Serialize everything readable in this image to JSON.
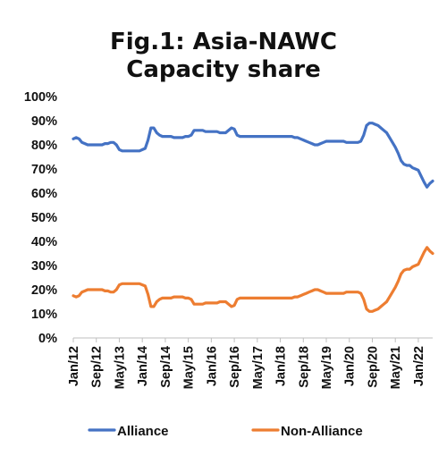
{
  "chart_data": {
    "type": "line",
    "title": "Fig.1: Asia-NAWC",
    "subtitle": "Capacity share",
    "xlabel": "",
    "ylabel": "",
    "x_tick_labels": [
      "Jan/12",
      "Sep/12",
      "May/13",
      "Jan/14",
      "Sep/14",
      "May/15",
      "Jan/16",
      "Sep/16",
      "May/17",
      "Jan/18",
      "Sep/18",
      "May/19",
      "Jan/20",
      "Sep/20",
      "May/21",
      "Jan/22"
    ],
    "y_tick_labels": [
      "0%",
      "10%",
      "20%",
      "30%",
      "40%",
      "50%",
      "60%",
      "70%",
      "80%",
      "90%",
      "100%"
    ],
    "ylim": [
      0,
      100
    ],
    "grid": false,
    "legend_position": "bottom",
    "colors": {
      "Alliance": "#4472C4",
      "Non-Alliance": "#ED7D31"
    },
    "series": [
      {
        "name": "Alliance",
        "color": "#4472C4",
        "points": [
          [
            "Jan/12",
            82.5
          ],
          [
            "Feb/12",
            83.0
          ],
          [
            "Mar/12",
            82.5
          ],
          [
            "Apr/12",
            81.0
          ],
          [
            "May/12",
            80.5
          ],
          [
            "Jun/12",
            80.0
          ],
          [
            "Jul/12",
            80.0
          ],
          [
            "Aug/12",
            80.0
          ],
          [
            "Sep/12",
            80.0
          ],
          [
            "Oct/12",
            80.0
          ],
          [
            "Nov/12",
            80.0
          ],
          [
            "Dec/12",
            80.5
          ],
          [
            "Jan/13",
            80.5
          ],
          [
            "Feb/13",
            81.0
          ],
          [
            "Mar/13",
            81.0
          ],
          [
            "Apr/13",
            80.0
          ],
          [
            "May/13",
            78.0
          ],
          [
            "Jun/13",
            77.5
          ],
          [
            "Jul/13",
            77.5
          ],
          [
            "Aug/13",
            77.5
          ],
          [
            "Sep/13",
            77.5
          ],
          [
            "Oct/13",
            77.5
          ],
          [
            "Nov/13",
            77.5
          ],
          [
            "Dec/13",
            77.5
          ],
          [
            "Jan/14",
            78.0
          ],
          [
            "Feb/14",
            78.5
          ],
          [
            "Mar/14",
            82.0
          ],
          [
            "Apr/14",
            87.0
          ],
          [
            "May/14",
            87.0
          ],
          [
            "Jun/14",
            85.0
          ],
          [
            "Jul/14",
            84.0
          ],
          [
            "Aug/14",
            83.5
          ],
          [
            "Sep/14",
            83.5
          ],
          [
            "Oct/14",
            83.5
          ],
          [
            "Nov/14",
            83.5
          ],
          [
            "Dec/14",
            83.0
          ],
          [
            "Jan/15",
            83.0
          ],
          [
            "Feb/15",
            83.0
          ],
          [
            "Mar/15",
            83.0
          ],
          [
            "Apr/15",
            83.5
          ],
          [
            "May/15",
            83.5
          ],
          [
            "Jun/15",
            84.0
          ],
          [
            "Jul/15",
            86.0
          ],
          [
            "Aug/15",
            86.0
          ],
          [
            "Sep/15",
            86.0
          ],
          [
            "Oct/15",
            86.0
          ],
          [
            "Nov/15",
            85.5
          ],
          [
            "Dec/15",
            85.5
          ],
          [
            "Jan/16",
            85.5
          ],
          [
            "Feb/16",
            85.5
          ],
          [
            "Mar/16",
            85.5
          ],
          [
            "Apr/16",
            85.0
          ],
          [
            "May/16",
            85.0
          ],
          [
            "Jun/16",
            85.0
          ],
          [
            "Jul/16",
            86.0
          ],
          [
            "Aug/16",
            87.0
          ],
          [
            "Sep/16",
            86.5
          ],
          [
            "Oct/16",
            84.0
          ],
          [
            "Nov/16",
            83.5
          ],
          [
            "Dec/16",
            83.5
          ],
          [
            "Jan/17",
            83.5
          ],
          [
            "Feb/17",
            83.5
          ],
          [
            "Mar/17",
            83.5
          ],
          [
            "Apr/17",
            83.5
          ],
          [
            "May/17",
            83.5
          ],
          [
            "Jun/17",
            83.5
          ],
          [
            "Jul/17",
            83.5
          ],
          [
            "Aug/17",
            83.5
          ],
          [
            "Sep/17",
            83.5
          ],
          [
            "Oct/17",
            83.5
          ],
          [
            "Nov/17",
            83.5
          ],
          [
            "Dec/17",
            83.5
          ],
          [
            "Jan/18",
            83.5
          ],
          [
            "Feb/18",
            83.5
          ],
          [
            "Mar/18",
            83.5
          ],
          [
            "Apr/18",
            83.5
          ],
          [
            "May/18",
            83.5
          ],
          [
            "Jun/18",
            83.0
          ],
          [
            "Jul/18",
            83.0
          ],
          [
            "Aug/18",
            82.5
          ],
          [
            "Sep/18",
            82.0
          ],
          [
            "Oct/18",
            81.5
          ],
          [
            "Nov/18",
            81.0
          ],
          [
            "Dec/18",
            80.5
          ],
          [
            "Jan/19",
            80.0
          ],
          [
            "Feb/19",
            80.0
          ],
          [
            "Mar/19",
            80.5
          ],
          [
            "Apr/19",
            81.0
          ],
          [
            "May/19",
            81.5
          ],
          [
            "Jun/19",
            81.5
          ],
          [
            "Jul/19",
            81.5
          ],
          [
            "Aug/19",
            81.5
          ],
          [
            "Sep/19",
            81.5
          ],
          [
            "Oct/19",
            81.5
          ],
          [
            "Nov/19",
            81.5
          ],
          [
            "Dec/19",
            81.0
          ],
          [
            "Jan/20",
            81.0
          ],
          [
            "Feb/20",
            81.0
          ],
          [
            "Mar/20",
            81.0
          ],
          [
            "Apr/20",
            81.0
          ],
          [
            "May/20",
            81.5
          ],
          [
            "Jun/20",
            84.0
          ],
          [
            "Jul/20",
            88.0
          ],
          [
            "Aug/20",
            89.0
          ],
          [
            "Sep/20",
            89.0
          ],
          [
            "Oct/20",
            88.5
          ],
          [
            "Nov/20",
            88.0
          ],
          [
            "Dec/20",
            87.0
          ],
          [
            "Jan/21",
            86.0
          ],
          [
            "Feb/21",
            85.0
          ],
          [
            "Mar/21",
            83.0
          ],
          [
            "Apr/21",
            81.0
          ],
          [
            "May/21",
            79.0
          ],
          [
            "Jun/21",
            76.5
          ],
          [
            "Jul/21",
            73.5
          ],
          [
            "Aug/21",
            72.0
          ],
          [
            "Sep/21",
            71.5
          ],
          [
            "Oct/21",
            71.5
          ],
          [
            "Nov/21",
            70.5
          ],
          [
            "Dec/21",
            70.0
          ],
          [
            "Jan/22",
            69.5
          ],
          [
            "Feb/22",
            67.0
          ],
          [
            "Mar/22",
            64.5
          ],
          [
            "Apr/22",
            62.5
          ],
          [
            "May/22",
            64.0
          ],
          [
            "Jun/22",
            65.0
          ]
        ]
      },
      {
        "name": "Non-Alliance",
        "color": "#ED7D31",
        "points": [
          [
            "Jan/12",
            17.5
          ],
          [
            "Feb/12",
            17.0
          ],
          [
            "Mar/12",
            17.5
          ],
          [
            "Apr/12",
            19.0
          ],
          [
            "May/12",
            19.5
          ],
          [
            "Jun/12",
            20.0
          ],
          [
            "Jul/12",
            20.0
          ],
          [
            "Aug/12",
            20.0
          ],
          [
            "Sep/12",
            20.0
          ],
          [
            "Oct/12",
            20.0
          ],
          [
            "Nov/12",
            20.0
          ],
          [
            "Dec/12",
            19.5
          ],
          [
            "Jan/13",
            19.5
          ],
          [
            "Feb/13",
            19.0
          ],
          [
            "Mar/13",
            19.0
          ],
          [
            "Apr/13",
            20.0
          ],
          [
            "May/13",
            22.0
          ],
          [
            "Jun/13",
            22.5
          ],
          [
            "Jul/13",
            22.5
          ],
          [
            "Aug/13",
            22.5
          ],
          [
            "Sep/13",
            22.5
          ],
          [
            "Oct/13",
            22.5
          ],
          [
            "Nov/13",
            22.5
          ],
          [
            "Dec/13",
            22.5
          ],
          [
            "Jan/14",
            22.0
          ],
          [
            "Feb/14",
            21.5
          ],
          [
            "Mar/14",
            18.0
          ],
          [
            "Apr/14",
            13.0
          ],
          [
            "May/14",
            13.0
          ],
          [
            "Jun/14",
            15.0
          ],
          [
            "Jul/14",
            16.0
          ],
          [
            "Aug/14",
            16.5
          ],
          [
            "Sep/14",
            16.5
          ],
          [
            "Oct/14",
            16.5
          ],
          [
            "Nov/14",
            16.5
          ],
          [
            "Dec/14",
            17.0
          ],
          [
            "Jan/15",
            17.0
          ],
          [
            "Feb/15",
            17.0
          ],
          [
            "Mar/15",
            17.0
          ],
          [
            "Apr/15",
            16.5
          ],
          [
            "May/15",
            16.5
          ],
          [
            "Jun/15",
            16.0
          ],
          [
            "Jul/15",
            14.0
          ],
          [
            "Aug/15",
            14.0
          ],
          [
            "Sep/15",
            14.0
          ],
          [
            "Oct/15",
            14.0
          ],
          [
            "Nov/15",
            14.5
          ],
          [
            "Dec/15",
            14.5
          ],
          [
            "Jan/16",
            14.5
          ],
          [
            "Feb/16",
            14.5
          ],
          [
            "Mar/16",
            14.5
          ],
          [
            "Apr/16",
            15.0
          ],
          [
            "May/16",
            15.0
          ],
          [
            "Jun/16",
            15.0
          ],
          [
            "Jul/16",
            14.0
          ],
          [
            "Aug/16",
            13.0
          ],
          [
            "Sep/16",
            13.5
          ],
          [
            "Oct/16",
            16.0
          ],
          [
            "Nov/16",
            16.5
          ],
          [
            "Dec/16",
            16.5
          ],
          [
            "Jan/17",
            16.5
          ],
          [
            "Feb/17",
            16.5
          ],
          [
            "Mar/17",
            16.5
          ],
          [
            "Apr/17",
            16.5
          ],
          [
            "May/17",
            16.5
          ],
          [
            "Jun/17",
            16.5
          ],
          [
            "Jul/17",
            16.5
          ],
          [
            "Aug/17",
            16.5
          ],
          [
            "Sep/17",
            16.5
          ],
          [
            "Oct/17",
            16.5
          ],
          [
            "Nov/17",
            16.5
          ],
          [
            "Dec/17",
            16.5
          ],
          [
            "Jan/18",
            16.5
          ],
          [
            "Feb/18",
            16.5
          ],
          [
            "Mar/18",
            16.5
          ],
          [
            "Apr/18",
            16.5
          ],
          [
            "May/18",
            16.5
          ],
          [
            "Jun/18",
            17.0
          ],
          [
            "Jul/18",
            17.0
          ],
          [
            "Aug/18",
            17.5
          ],
          [
            "Sep/18",
            18.0
          ],
          [
            "Oct/18",
            18.5
          ],
          [
            "Nov/18",
            19.0
          ],
          [
            "Dec/18",
            19.5
          ],
          [
            "Jan/19",
            20.0
          ],
          [
            "Feb/19",
            20.0
          ],
          [
            "Mar/19",
            19.5
          ],
          [
            "Apr/19",
            19.0
          ],
          [
            "May/19",
            18.5
          ],
          [
            "Jun/19",
            18.5
          ],
          [
            "Jul/19",
            18.5
          ],
          [
            "Aug/19",
            18.5
          ],
          [
            "Sep/19",
            18.5
          ],
          [
            "Oct/19",
            18.5
          ],
          [
            "Nov/19",
            18.5
          ],
          [
            "Dec/19",
            19.0
          ],
          [
            "Jan/20",
            19.0
          ],
          [
            "Feb/20",
            19.0
          ],
          [
            "Mar/20",
            19.0
          ],
          [
            "Apr/20",
            19.0
          ],
          [
            "May/20",
            18.5
          ],
          [
            "Jun/20",
            16.0
          ],
          [
            "Jul/20",
            12.0
          ],
          [
            "Aug/20",
            11.0
          ],
          [
            "Sep/20",
            11.0
          ],
          [
            "Oct/20",
            11.5
          ],
          [
            "Nov/20",
            12.0
          ],
          [
            "Dec/20",
            13.0
          ],
          [
            "Jan/21",
            14.0
          ],
          [
            "Feb/21",
            15.0
          ],
          [
            "Mar/21",
            17.0
          ],
          [
            "Apr/21",
            19.0
          ],
          [
            "May/21",
            21.0
          ],
          [
            "Jun/21",
            23.5
          ],
          [
            "Jul/21",
            26.5
          ],
          [
            "Aug/21",
            28.0
          ],
          [
            "Sep/21",
            28.5
          ],
          [
            "Oct/21",
            28.5
          ],
          [
            "Nov/21",
            29.5
          ],
          [
            "Dec/21",
            30.0
          ],
          [
            "Jan/22",
            30.5
          ],
          [
            "Feb/22",
            33.0
          ],
          [
            "Mar/22",
            35.5
          ],
          [
            "Apr/22",
            37.5
          ],
          [
            "May/22",
            36.0
          ],
          [
            "Jun/22",
            35.0
          ]
        ]
      }
    ]
  }
}
